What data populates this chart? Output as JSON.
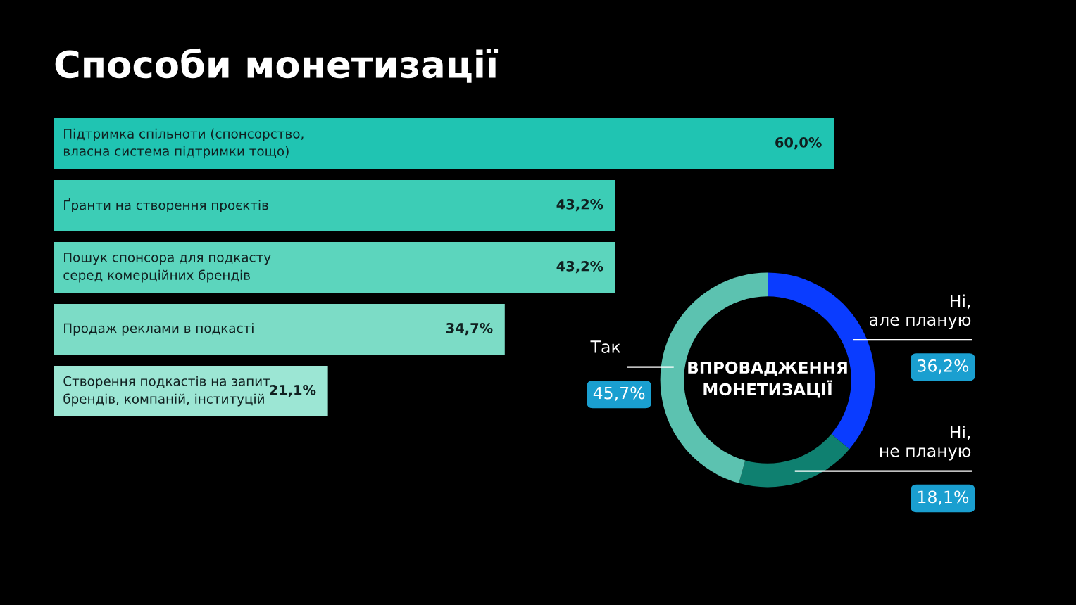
{
  "chart_data": [
    {
      "type": "bar",
      "orientation": "horizontal",
      "title": "Способи монетизації",
      "categories": [
        "Підтримка спільноти (спонсорство,\nвласна система підтримки тощо)",
        "Ґранти на створення проєктів",
        "Пошук спонсора для подкасту\nсеред комерційних брендів",
        "Продаж реклами в подкасті",
        "Створення подкастів на запит\nбрендів, компаній, інституцій"
      ],
      "values": [
        60.0,
        43.2,
        43.2,
        34.7,
        21.1
      ],
      "value_labels": [
        "60,0%",
        "43,2%",
        "43,2%",
        "34,7%",
        "21,1%"
      ],
      "colors": [
        "#20c4b2",
        "#3ccdb6",
        "#5cd5bd",
        "#7cdcc6",
        "#9ce6d4"
      ]
    },
    {
      "type": "donut",
      "title": "ВПРОВАДЖЕННЯ\nМОНЕТИЗАЦІЇ",
      "categories": [
        "Ні,\nале планую",
        "Ні,\nне планую",
        "Так"
      ],
      "values": [
        36.2,
        18.1,
        45.7
      ],
      "value_labels": [
        "36,2%",
        "18,1%",
        "45,7%"
      ],
      "colors": [
        "#0a3cff",
        "#0f8070",
        "#5cc2b0"
      ]
    }
  ]
}
